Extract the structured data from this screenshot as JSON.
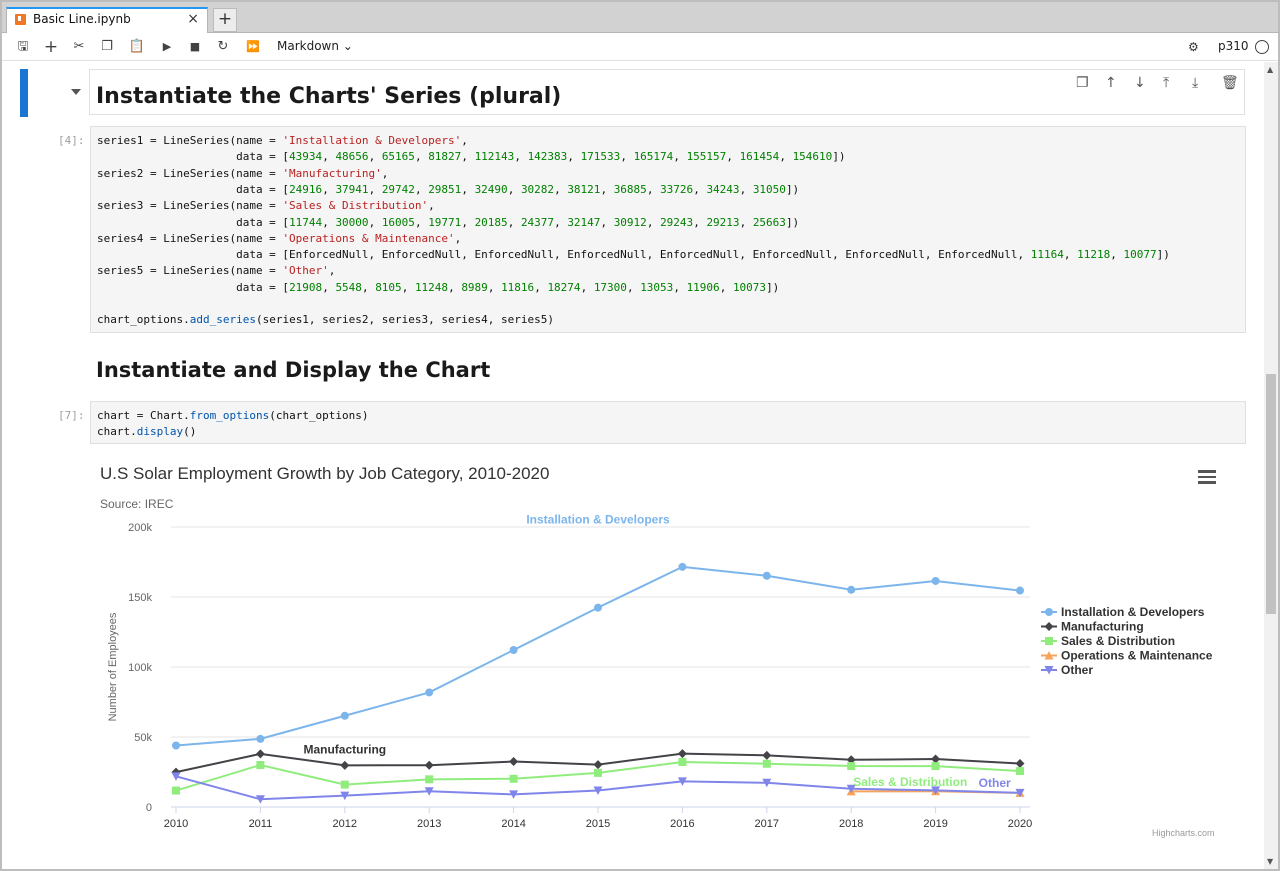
{
  "tab": {
    "title": "Basic Line.ipynb",
    "close": "×",
    "new_tab": "+"
  },
  "toolbar": {
    "icons": [
      "save-icon",
      "add-cell-icon",
      "cut-icon",
      "copy-icon",
      "paste-icon",
      "run-icon",
      "stop-icon",
      "restart-icon",
      "run-all-icon"
    ],
    "cell_type": "Markdown",
    "kernel": "p310"
  },
  "cells": {
    "heading1": "Instantiate the Charts' Series (plural)",
    "prompt4": "[4]:",
    "heading2": "Instantiate and Display the Chart",
    "prompt7": "[7]:"
  },
  "code4": [
    [
      [
        "series1 = LineSeries(name = ",
        ""
      ],
      [
        "'Installation & Developers'",
        "s"
      ],
      [
        ",",
        ""
      ]
    ],
    [
      [
        "                     data = [",
        ""
      ],
      [
        "43934",
        "n"
      ],
      [
        ", ",
        ""
      ],
      [
        "48656",
        "n"
      ],
      [
        ", ",
        ""
      ],
      [
        "65165",
        "n"
      ],
      [
        ", ",
        ""
      ],
      [
        "81827",
        "n"
      ],
      [
        ", ",
        ""
      ],
      [
        "112143",
        "n"
      ],
      [
        ", ",
        ""
      ],
      [
        "142383",
        "n"
      ],
      [
        ", ",
        ""
      ],
      [
        "171533",
        "n"
      ],
      [
        ", ",
        ""
      ],
      [
        "165174",
        "n"
      ],
      [
        ", ",
        ""
      ],
      [
        "155157",
        "n"
      ],
      [
        ", ",
        ""
      ],
      [
        "161454",
        "n"
      ],
      [
        ", ",
        ""
      ],
      [
        "154610",
        "n"
      ],
      [
        "])",
        ""
      ]
    ],
    [
      [
        "series2 = LineSeries(name = ",
        ""
      ],
      [
        "'Manufacturing'",
        "s"
      ],
      [
        ",",
        ""
      ]
    ],
    [
      [
        "                     data = [",
        ""
      ],
      [
        "24916",
        "n"
      ],
      [
        ", ",
        ""
      ],
      [
        "37941",
        "n"
      ],
      [
        ", ",
        ""
      ],
      [
        "29742",
        "n"
      ],
      [
        ", ",
        ""
      ],
      [
        "29851",
        "n"
      ],
      [
        ", ",
        ""
      ],
      [
        "32490",
        "n"
      ],
      [
        ", ",
        ""
      ],
      [
        "30282",
        "n"
      ],
      [
        ", ",
        ""
      ],
      [
        "38121",
        "n"
      ],
      [
        ", ",
        ""
      ],
      [
        "36885",
        "n"
      ],
      [
        ", ",
        ""
      ],
      [
        "33726",
        "n"
      ],
      [
        ", ",
        ""
      ],
      [
        "34243",
        "n"
      ],
      [
        ", ",
        ""
      ],
      [
        "31050",
        "n"
      ],
      [
        "])",
        ""
      ]
    ],
    [
      [
        "series3 = LineSeries(name = ",
        ""
      ],
      [
        "'Sales & Distribution'",
        "s"
      ],
      [
        ",",
        ""
      ]
    ],
    [
      [
        "                     data = [",
        ""
      ],
      [
        "11744",
        "n"
      ],
      [
        ", ",
        ""
      ],
      [
        "30000",
        "n"
      ],
      [
        ", ",
        ""
      ],
      [
        "16005",
        "n"
      ],
      [
        ", ",
        ""
      ],
      [
        "19771",
        "n"
      ],
      [
        ", ",
        ""
      ],
      [
        "20185",
        "n"
      ],
      [
        ", ",
        ""
      ],
      [
        "24377",
        "n"
      ],
      [
        ", ",
        ""
      ],
      [
        "32147",
        "n"
      ],
      [
        ", ",
        ""
      ],
      [
        "30912",
        "n"
      ],
      [
        ", ",
        ""
      ],
      [
        "29243",
        "n"
      ],
      [
        ", ",
        ""
      ],
      [
        "29213",
        "n"
      ],
      [
        ", ",
        ""
      ],
      [
        "25663",
        "n"
      ],
      [
        "])",
        ""
      ]
    ],
    [
      [
        "series4 = LineSeries(name = ",
        ""
      ],
      [
        "'Operations & Maintenance'",
        "s"
      ],
      [
        ",",
        ""
      ]
    ],
    [
      [
        "                     data = [EnforcedNull, EnforcedNull, EnforcedNull, EnforcedNull, EnforcedNull, EnforcedNull, EnforcedNull, EnforcedNull, ",
        ""
      ],
      [
        "11164",
        "n"
      ],
      [
        ", ",
        ""
      ],
      [
        "11218",
        "n"
      ],
      [
        ", ",
        ""
      ],
      [
        "10077",
        "n"
      ],
      [
        "])",
        ""
      ]
    ],
    [
      [
        "series5 = LineSeries(name = ",
        ""
      ],
      [
        "'Other'",
        "s"
      ],
      [
        ",",
        ""
      ]
    ],
    [
      [
        "                     data = [",
        ""
      ],
      [
        "21908",
        "n"
      ],
      [
        ", ",
        ""
      ],
      [
        "5548",
        "n"
      ],
      [
        ", ",
        ""
      ],
      [
        "8105",
        "n"
      ],
      [
        ", ",
        ""
      ],
      [
        "11248",
        "n"
      ],
      [
        ", ",
        ""
      ],
      [
        "8989",
        "n"
      ],
      [
        ", ",
        ""
      ],
      [
        "11816",
        "n"
      ],
      [
        ", ",
        ""
      ],
      [
        "18274",
        "n"
      ],
      [
        ", ",
        ""
      ],
      [
        "17300",
        "n"
      ],
      [
        ", ",
        ""
      ],
      [
        "13053",
        "n"
      ],
      [
        ", ",
        ""
      ],
      [
        "11906",
        "n"
      ],
      [
        ", ",
        ""
      ],
      [
        "10073",
        "n"
      ],
      [
        "])",
        ""
      ]
    ],
    [
      [
        "",
        ""
      ]
    ],
    [
      [
        "chart_options.",
        ""
      ],
      [
        "add_series",
        "f"
      ],
      [
        "(series1, series2, series3, series4, series5)",
        ""
      ]
    ]
  ],
  "code7": [
    [
      [
        "chart = Chart.",
        ""
      ],
      [
        "from_options",
        "f"
      ],
      [
        "(chart_options)",
        ""
      ]
    ],
    [
      [
        "chart.",
        ""
      ],
      [
        "display",
        "f"
      ],
      [
        "()",
        ""
      ]
    ]
  ],
  "chart_data": {
    "type": "line",
    "title": "U.S Solar Employment Growth by Job Category, 2010-2020",
    "subtitle": "Source: IREC",
    "ylabel": "Number of Employees",
    "xlabel": "",
    "ylim": [
      0,
      200000
    ],
    "yticks": [
      "0",
      "50k",
      "100k",
      "150k",
      "200k"
    ],
    "x": [
      2010,
      2011,
      2012,
      2013,
      2014,
      2015,
      2016,
      2017,
      2018,
      2019,
      2020
    ],
    "legend_position": "right",
    "series": [
      {
        "name": "Installation & Developers",
        "color": "#7cb5ec",
        "marker": "circle",
        "values": [
          43934,
          48656,
          65165,
          81827,
          112143,
          142383,
          171533,
          165174,
          155157,
          161454,
          154610
        ]
      },
      {
        "name": "Manufacturing",
        "color": "#434348",
        "marker": "diamond",
        "values": [
          24916,
          37941,
          29742,
          29851,
          32490,
          30282,
          38121,
          36885,
          33726,
          34243,
          31050
        ]
      },
      {
        "name": "Sales & Distribution",
        "color": "#90ed7d",
        "marker": "square",
        "values": [
          11744,
          30000,
          16005,
          19771,
          20185,
          24377,
          32147,
          30912,
          29243,
          29213,
          25663
        ]
      },
      {
        "name": "Operations & Maintenance",
        "color": "#f7a35c",
        "marker": "triangle",
        "values": [
          null,
          null,
          null,
          null,
          null,
          null,
          null,
          null,
          11164,
          11218,
          10077
        ]
      },
      {
        "name": "Other",
        "color": "#8085e9",
        "marker": "triangle-down",
        "values": [
          21908,
          5548,
          8105,
          11248,
          8989,
          11816,
          18274,
          17300,
          13053,
          11906,
          10073
        ]
      }
    ],
    "annotations": [
      {
        "text": "Installation & Developers",
        "series": 0
      },
      {
        "text": "Manufacturing",
        "series": 1
      },
      {
        "text": "Sales & Distribution",
        "series": 2
      },
      {
        "text": "Other",
        "series": 4
      }
    ],
    "credits": "Highcharts.com"
  }
}
